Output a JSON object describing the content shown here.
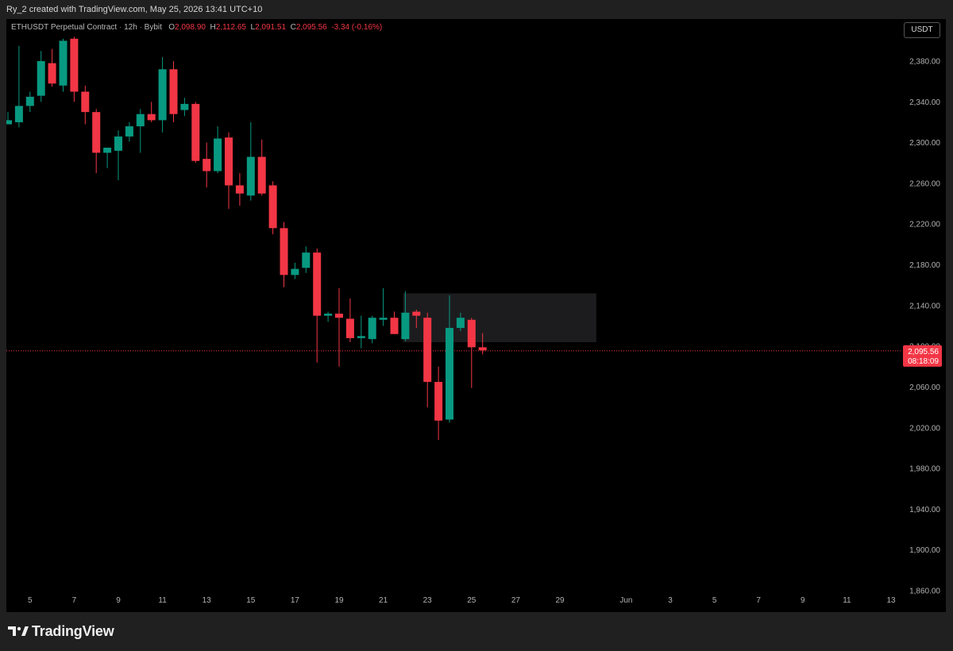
{
  "header": {
    "credit": "Ry_2 created with TradingView.com, May 25, 2026 13:41 UTC+10"
  },
  "legend": {
    "symbol": "ETHUSDT Perpetual Contract",
    "interval": "12h",
    "exchange": "Bybit",
    "o_label": "O",
    "o_value": "2,098.90",
    "h_label": "H",
    "h_value": "2,112.65",
    "l_label": "L",
    "l_value": "2,091.51",
    "c_label": "C",
    "c_value": "2,095.56",
    "change": "-3.34 (-0.16%)"
  },
  "currency_button": {
    "label": "USDT"
  },
  "price_badge": {
    "price": "2,095.56",
    "countdown": "08:18:09",
    "color": "#f23645"
  },
  "footer": {
    "brand": "TradingView"
  },
  "colors": {
    "up": "#089981",
    "down": "#f23645",
    "zone": "#1c1c1e",
    "bg": "#000000"
  },
  "chart_data": {
    "type": "candlestick",
    "ylim": [
      1860,
      2404
    ],
    "y_ticks": [
      2380,
      2340,
      2300,
      2260,
      2220,
      2180,
      2140,
      2100,
      2060,
      2020,
      1980,
      1940,
      1900,
      1860
    ],
    "y_tick_labels": [
      "2,380.00",
      "2,340.00",
      "2,300.00",
      "2,260.00",
      "2,220.00",
      "2,180.00",
      "2,140.00",
      "2,100.00",
      "2,060.00",
      "2,020.00",
      "1,980.00",
      "1,940.00",
      "1,900.00",
      "1,860.00"
    ],
    "x_ticks": [
      {
        "label": "5",
        "idx": 2
      },
      {
        "label": "7",
        "idx": 6
      },
      {
        "label": "9",
        "idx": 10
      },
      {
        "label": "11",
        "idx": 14
      },
      {
        "label": "13",
        "idx": 18
      },
      {
        "label": "15",
        "idx": 22
      },
      {
        "label": "17",
        "idx": 26
      },
      {
        "label": "19",
        "idx": 30
      },
      {
        "label": "21",
        "idx": 34
      },
      {
        "label": "23",
        "idx": 38
      },
      {
        "label": "25",
        "idx": 42
      },
      {
        "label": "27",
        "idx": 46
      },
      {
        "label": "29",
        "idx": 50
      },
      {
        "label": "Jun",
        "idx": 56
      },
      {
        "label": "3",
        "idx": 60
      },
      {
        "label": "5",
        "idx": 64
      },
      {
        "label": "7",
        "idx": 68
      },
      {
        "label": "9",
        "idx": 72
      },
      {
        "label": "11",
        "idx": 76
      },
      {
        "label": "13",
        "idx": 80
      }
    ],
    "current_price": 2095.56,
    "zone": {
      "idx_start": 35.8,
      "idx_end": 53.3,
      "price_top": 2152,
      "price_bottom": 2104
    },
    "candles": [
      {
        "o": 2318,
        "h": 2330,
        "l": 2318,
        "c": 2322
      },
      {
        "o": 2320,
        "h": 2395,
        "l": 2315,
        "c": 2336
      },
      {
        "o": 2336,
        "h": 2350,
        "l": 2330,
        "c": 2345
      },
      {
        "o": 2346,
        "h": 2390,
        "l": 2340,
        "c": 2380
      },
      {
        "o": 2378,
        "h": 2392,
        "l": 2355,
        "c": 2358
      },
      {
        "o": 2356,
        "h": 2402,
        "l": 2350,
        "c": 2400
      },
      {
        "o": 2402,
        "h": 2404,
        "l": 2340,
        "c": 2350
      },
      {
        "o": 2350,
        "h": 2356,
        "l": 2318,
        "c": 2330
      },
      {
        "o": 2330,
        "h": 2333,
        "l": 2270,
        "c": 2290
      },
      {
        "o": 2290,
        "h": 2295,
        "l": 2275,
        "c": 2295
      },
      {
        "o": 2292,
        "h": 2312,
        "l": 2263,
        "c": 2306
      },
      {
        "o": 2306,
        "h": 2320,
        "l": 2301,
        "c": 2316
      },
      {
        "o": 2316,
        "h": 2333,
        "l": 2290,
        "c": 2328
      },
      {
        "o": 2328,
        "h": 2340,
        "l": 2320,
        "c": 2322
      },
      {
        "o": 2322,
        "h": 2384,
        "l": 2310,
        "c": 2372
      },
      {
        "o": 2372,
        "h": 2380,
        "l": 2320,
        "c": 2328
      },
      {
        "o": 2332,
        "h": 2344,
        "l": 2326,
        "c": 2338
      },
      {
        "o": 2338,
        "h": 2340,
        "l": 2280,
        "c": 2282
      },
      {
        "o": 2284,
        "h": 2300,
        "l": 2256,
        "c": 2272
      },
      {
        "o": 2272,
        "h": 2316,
        "l": 2270,
        "c": 2304
      },
      {
        "o": 2305,
        "h": 2310,
        "l": 2235,
        "c": 2258
      },
      {
        "o": 2258,
        "h": 2270,
        "l": 2238,
        "c": 2250
      },
      {
        "o": 2248,
        "h": 2320,
        "l": 2243,
        "c": 2286
      },
      {
        "o": 2286,
        "h": 2303,
        "l": 2248,
        "c": 2250
      },
      {
        "o": 2258,
        "h": 2262,
        "l": 2210,
        "c": 2216
      },
      {
        "o": 2216,
        "h": 2222,
        "l": 2158,
        "c": 2170
      },
      {
        "o": 2170,
        "h": 2182,
        "l": 2166,
        "c": 2176
      },
      {
        "o": 2177,
        "h": 2198,
        "l": 2172,
        "c": 2192
      },
      {
        "o": 2192,
        "h": 2196,
        "l": 2084,
        "c": 2130
      },
      {
        "o": 2130,
        "h": 2134,
        "l": 2124,
        "c": 2132
      },
      {
        "o": 2132,
        "h": 2157,
        "l": 2080,
        "c": 2128
      },
      {
        "o": 2127,
        "h": 2147,
        "l": 2104,
        "c": 2108
      },
      {
        "o": 2108,
        "h": 2130,
        "l": 2098,
        "c": 2110
      },
      {
        "o": 2107,
        "h": 2130,
        "l": 2103,
        "c": 2128
      },
      {
        "o": 2126,
        "h": 2157,
        "l": 2120,
        "c": 2128
      },
      {
        "o": 2128,
        "h": 2134,
        "l": 2112,
        "c": 2112
      },
      {
        "o": 2107,
        "h": 2154,
        "l": 2105,
        "c": 2133
      },
      {
        "o": 2134,
        "h": 2136,
        "l": 2118,
        "c": 2130
      },
      {
        "o": 2128,
        "h": 2133,
        "l": 2040,
        "c": 2065
      },
      {
        "o": 2065,
        "h": 2080,
        "l": 2008,
        "c": 2027
      },
      {
        "o": 2028,
        "h": 2150,
        "l": 2025,
        "c": 2118
      },
      {
        "o": 2118,
        "h": 2133,
        "l": 2115,
        "c": 2128
      },
      {
        "o": 2126,
        "h": 2128,
        "l": 2059,
        "c": 2099
      },
      {
        "o": 2099,
        "h": 2113,
        "l": 2092,
        "c": 2096
      }
    ]
  }
}
